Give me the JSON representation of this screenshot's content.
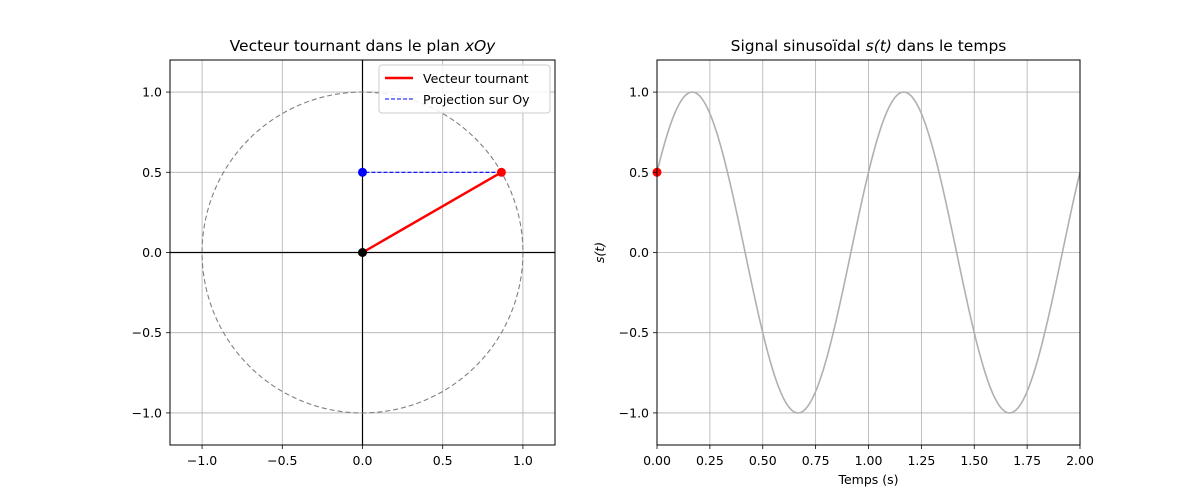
{
  "colors": {
    "vector": "#ff0000",
    "projection": "#0000ff",
    "origin_point": "#000000",
    "unit_circle": "#808080",
    "signal": "#b0b0b0",
    "signal_marker": "#ff0000",
    "grid": "#b0b0b0"
  },
  "chart_data": [
    {
      "type": "line",
      "title_prefix": "Vecteur tournant dans le plan ",
      "title_math": "xOy",
      "xlabel": "",
      "ylabel": "",
      "xlim": [
        -1.2,
        1.2
      ],
      "ylim": [
        -1.2,
        1.2
      ],
      "xticks": [
        -1.0,
        -0.5,
        0.0,
        0.5,
        1.0
      ],
      "xtick_labels": [
        "−1.0",
        "−0.5",
        "0.0",
        "0.5",
        "1.0"
      ],
      "yticks": [
        -1.0,
        -0.5,
        0.0,
        0.5,
        1.0
      ],
      "ytick_labels": [
        "−1.0",
        "−0.5",
        "0.0",
        "0.5",
        "1.0"
      ],
      "grid": true,
      "legend_position": "top-right",
      "unit_circle": {
        "center": [
          0,
          0
        ],
        "radius": 1,
        "style": "dashed"
      },
      "series": [
        {
          "name": "Vecteur tournant",
          "style": "solid",
          "points": [
            [
              0,
              0
            ],
            [
              0.866,
              0.5
            ]
          ]
        },
        {
          "name": "Projection sur Oy",
          "style": "dashed",
          "points": [
            [
              0.866,
              0.5
            ],
            [
              0,
              0.5
            ]
          ]
        }
      ],
      "markers": [
        {
          "x": 0,
          "y": 0,
          "color": "#000000"
        },
        {
          "x": 0.866,
          "y": 0.5,
          "color": "#ff0000"
        },
        {
          "x": 0,
          "y": 0.5,
          "color": "#0000ff"
        }
      ]
    },
    {
      "type": "line",
      "title_prefix": "Signal sinusoïdal ",
      "title_math": "s(t)",
      "title_suffix": " dans le temps",
      "xlabel": "Temps (s)",
      "ylabel": "s(t)",
      "xlim": [
        0,
        2
      ],
      "ylim": [
        -1.2,
        1.2
      ],
      "xticks": [
        0,
        0.25,
        0.5,
        0.75,
        1.0,
        1.25,
        1.5,
        1.75,
        2.0
      ],
      "xtick_labels": [
        "0.00",
        "0.25",
        "0.50",
        "0.75",
        "1.00",
        "1.25",
        "1.50",
        "1.75",
        "2.00"
      ],
      "yticks": [
        -1.0,
        -0.5,
        0.0,
        0.5,
        1.0
      ],
      "ytick_labels": [
        "−1.0",
        "−0.5",
        "0.0",
        "0.5",
        "1.0"
      ],
      "grid": true,
      "signal": {
        "function": "sin",
        "amplitude": 1,
        "frequency": 1,
        "phase_rad": 0.5236
      },
      "series": [
        {
          "x": [
            0,
            0.0833,
            0.1667,
            0.25,
            0.3333,
            0.4167,
            0.5,
            0.5833,
            0.6667,
            0.75,
            0.8333,
            0.9167,
            1.0,
            1.0833,
            1.1667,
            1.25,
            1.3333,
            1.4167,
            1.5,
            1.5833,
            1.6667,
            1.75,
            1.8333,
            1.9167,
            2.0
          ],
          "y": [
            0.5,
            0.866,
            1.0,
            0.866,
            0.5,
            0.0,
            -0.5,
            -0.866,
            -1.0,
            -0.866,
            -0.5,
            0.0,
            0.5,
            0.866,
            1.0,
            0.866,
            0.5,
            0.0,
            -0.5,
            -0.866,
            -1.0,
            -0.866,
            -0.5,
            0.0,
            0.5
          ]
        }
      ],
      "markers": [
        {
          "x": 0,
          "y": 0.5,
          "color": "#ff0000"
        }
      ]
    }
  ]
}
